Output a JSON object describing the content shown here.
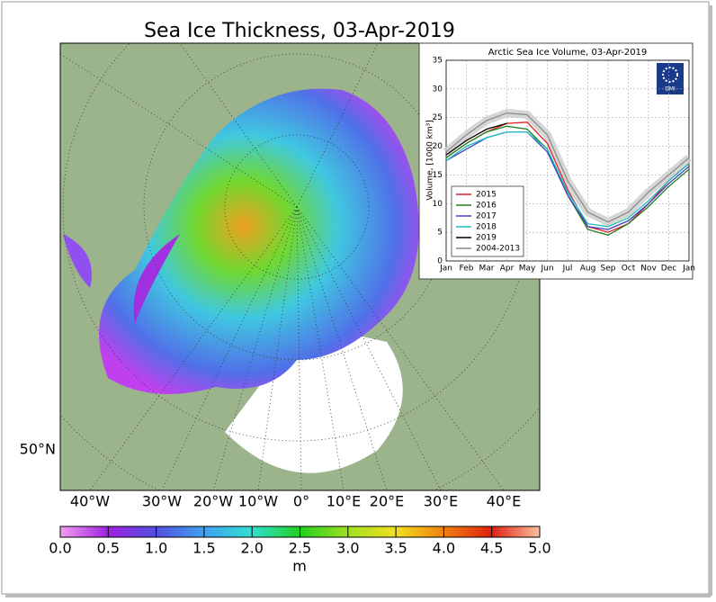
{
  "map": {
    "title": "Sea Ice Thickness, 03-Apr-2019",
    "lon_labels": [
      "40°W",
      "30°W",
      "20°W",
      "10°W",
      "0°",
      "10°E",
      "20°E",
      "30°E",
      "40°E"
    ],
    "lat_labels": [
      "50°N"
    ],
    "colorbar": {
      "label": "m",
      "lim": [
        0,
        5
      ],
      "ticks": [
        {
          "value": 0,
          "label": "0.0"
        },
        {
          "value": 0.5,
          "label": "0.5"
        },
        {
          "value": 1,
          "label": "1.0"
        },
        {
          "value": 1.5,
          "label": "1.5"
        },
        {
          "value": 2,
          "label": "2.0"
        },
        {
          "value": 2.5,
          "label": "2.5"
        },
        {
          "value": 3,
          "label": "3.0"
        },
        {
          "value": 3.5,
          "label": "3.5"
        },
        {
          "value": 4,
          "label": "4.0"
        },
        {
          "value": 4.5,
          "label": "4.5"
        },
        {
          "value": 5,
          "label": "5.0"
        }
      ]
    }
  },
  "chart_data": {
    "type": "line",
    "title": "Arctic Sea Ice Volume, 03-Apr-2019",
    "ylabel": "Volume, [1000 km³]",
    "logo_text": "DMI",
    "x": [
      0,
      1,
      2,
      3,
      4,
      5,
      6,
      7,
      8,
      9,
      10,
      11,
      12
    ],
    "xlim": [
      0,
      12
    ],
    "xticks": [
      {
        "value": 0,
        "label": "Jan"
      },
      {
        "value": 1,
        "label": "Feb"
      },
      {
        "value": 2,
        "label": "Mar"
      },
      {
        "value": 3,
        "label": "Apr"
      },
      {
        "value": 4,
        "label": "May"
      },
      {
        "value": 5,
        "label": "Jun"
      },
      {
        "value": 6,
        "label": "Jul"
      },
      {
        "value": 7,
        "label": "Aug"
      },
      {
        "value": 8,
        "label": "Sep"
      },
      {
        "value": 9,
        "label": "Oct"
      },
      {
        "value": 10,
        "label": "Nov"
      },
      {
        "value": 11,
        "label": "Dec"
      },
      {
        "value": 12,
        "label": "Jan"
      }
    ],
    "ylim": [
      0,
      35
    ],
    "yticks": [
      0,
      5,
      10,
      15,
      20,
      25,
      30,
      35
    ],
    "grid": true,
    "legend": "lower left",
    "series": [
      {
        "name": "2015",
        "color": "#e02020",
        "values": [
          18,
          20.5,
          22.5,
          24,
          24.2,
          20.5,
          12.5,
          6,
          5,
          6.5,
          10,
          14,
          17
        ]
      },
      {
        "name": "2016",
        "color": "#208020",
        "values": [
          18,
          20.5,
          22.5,
          23.5,
          23,
          19.5,
          11.5,
          5.5,
          4.5,
          6.5,
          9.5,
          13,
          16
        ]
      },
      {
        "name": "2017",
        "color": "#4040c0",
        "values": [
          17.5,
          19.5,
          21.5,
          22.5,
          22.5,
          19,
          11.5,
          6,
          5.5,
          7,
          10,
          13.5,
          16.5
        ]
      },
      {
        "name": "2018",
        "color": "#20c0c0",
        "values": [
          17.5,
          20,
          21.5,
          22.5,
          22.5,
          19.5,
          12,
          6.5,
          6,
          7.5,
          10.5,
          14,
          17
        ]
      },
      {
        "name": "2019",
        "color": "#000000",
        "values": [
          18.5,
          21,
          23,
          24,
          null,
          null,
          null,
          null,
          null,
          null,
          null,
          null,
          null
        ]
      },
      {
        "name": "2004-2013",
        "color": "#888888",
        "values": [
          19,
          22,
          24.5,
          25.8,
          25.5,
          22,
          14,
          8.5,
          6.8,
          8.5,
          12,
          15,
          18
        ]
      }
    ]
  }
}
